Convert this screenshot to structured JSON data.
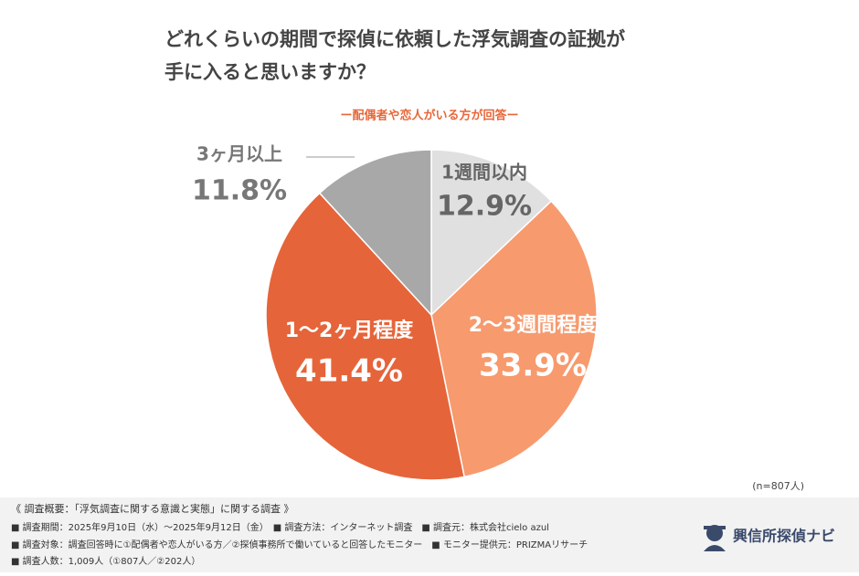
{
  "chart_data": {
    "type": "pie",
    "title": [
      "どれくらいの期間で探偵に依頼した浮気調査の証拠が",
      "手に入ると思いますか？"
    ],
    "subtitle": "ー配偶者や恋人がいる方が回答ー",
    "note": "(n=807人)",
    "categories": [
      "1週間以内",
      "2〜3週間程度",
      "1〜2ヶ月程度",
      "3ヶ月以上"
    ],
    "values": [
      12.9,
      33.9,
      41.4,
      11.8
    ],
    "value_labels": [
      "12.9%",
      "33.9%",
      "41.4%",
      "11.8%"
    ],
    "colors": [
      "#e0e0e0",
      "#f79a6e",
      "#e6643a",
      "#a8a8a8"
    ]
  },
  "footer": {
    "lines": [
      "《 調査概要：「浮気調査に関する意識と実態」に関する調査 》",
      "■ 調査期間：2025年9月10日（水）〜2025年9月12日（金）　■ 調査方法：インターネット調査　■ 調査元：株式会社cielo azul",
      "■ 調査対象：調査回答時に①配偶者や恋人がいる方／②探偵事務所で働いていると回答したモニター　■ モニター提供元：PRIZMAリサーチ",
      "■ 調査人数：1,009人（①807人／②202人）"
    ],
    "logo": "興信所探偵ナビ"
  }
}
